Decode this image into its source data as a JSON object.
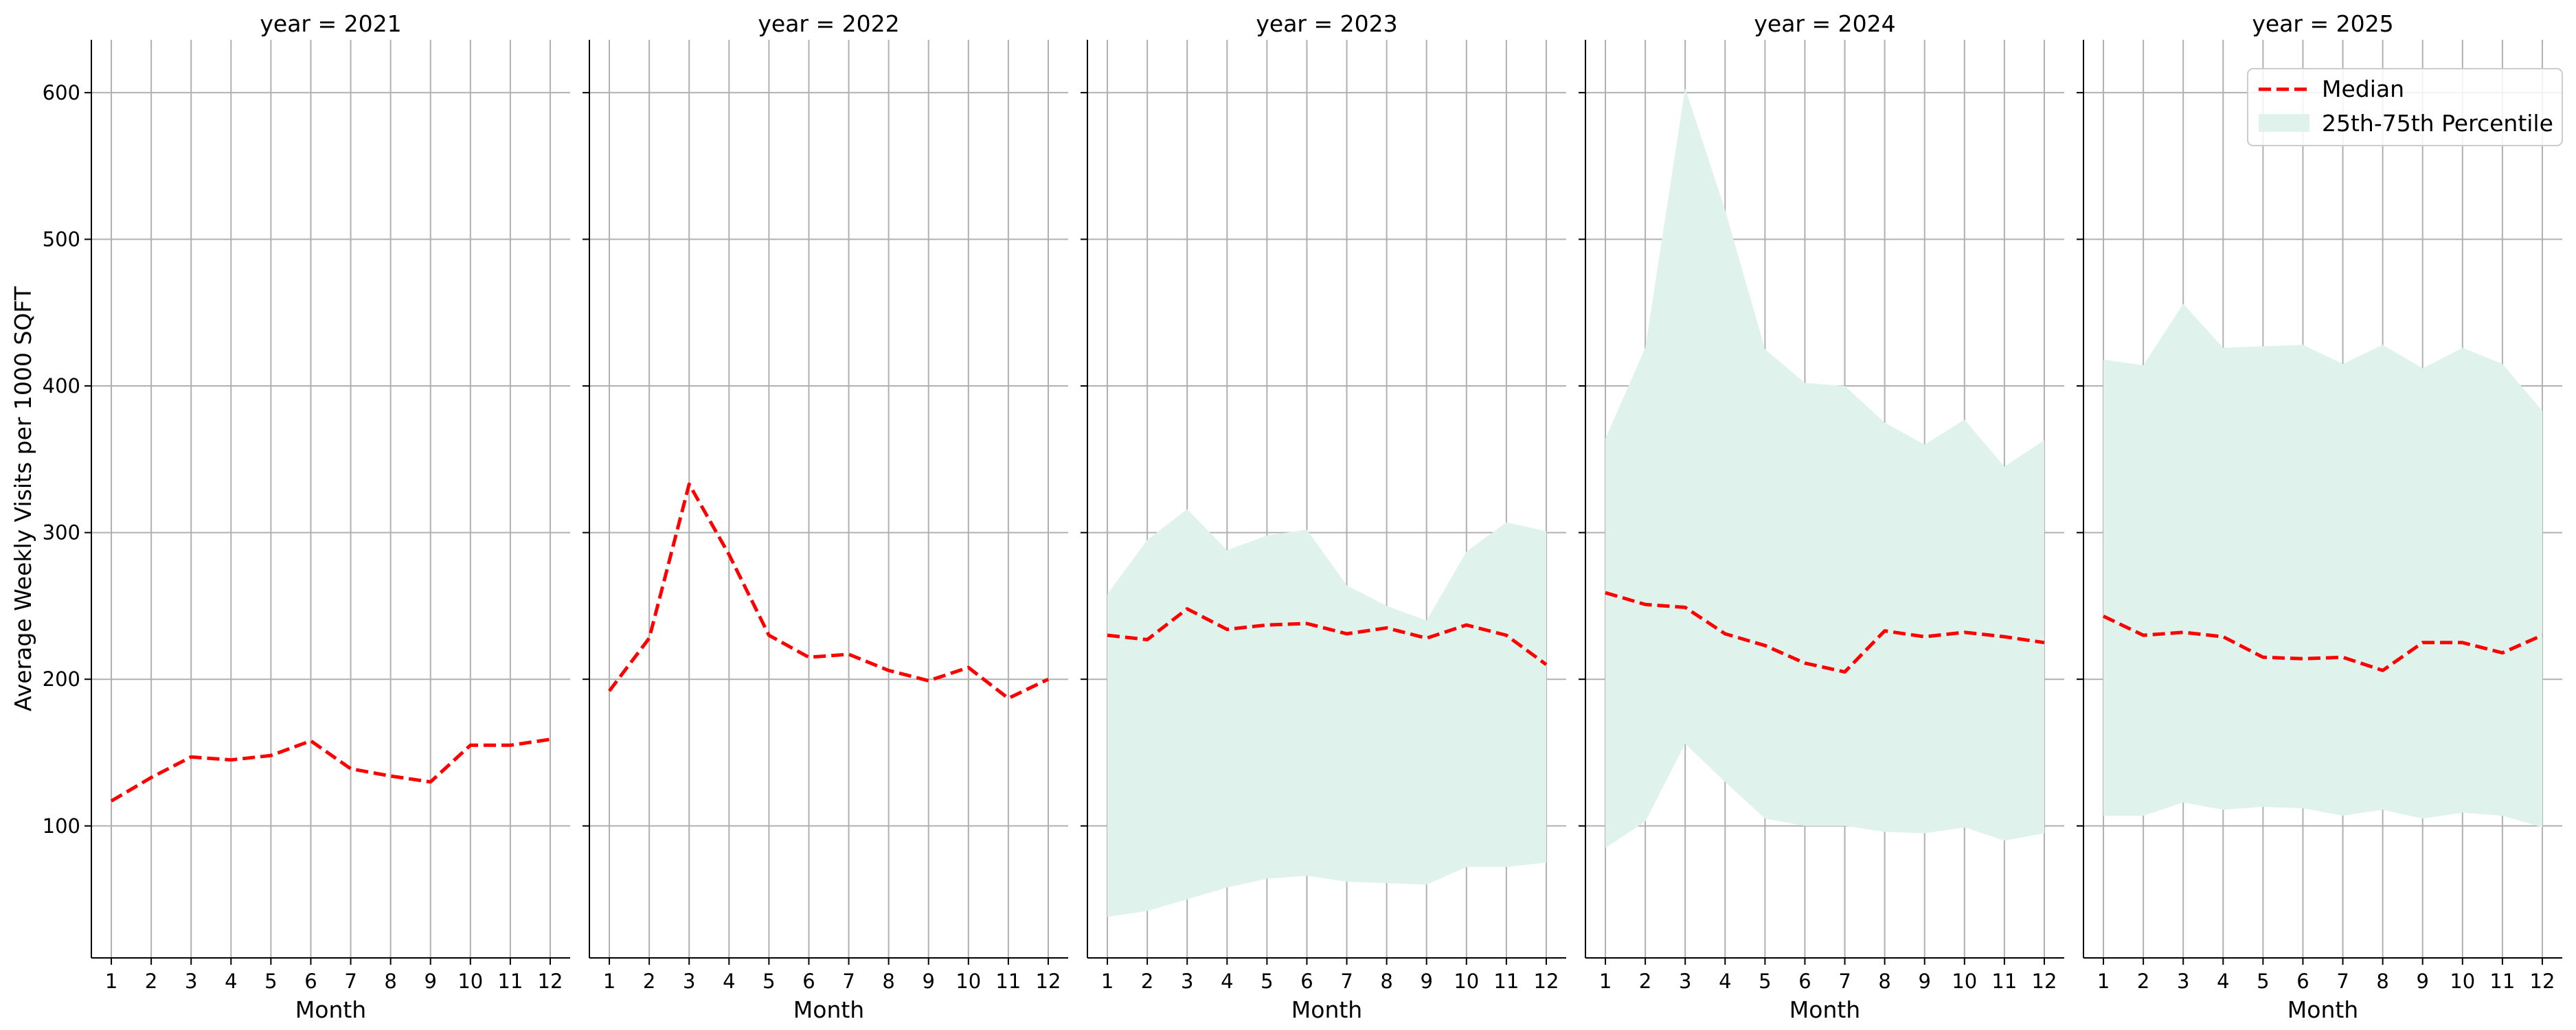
{
  "colors": {
    "median_line": "#ff0000",
    "band_fill": "#dff2ec",
    "grid": "#b0b0b0",
    "axis": "#000000"
  },
  "chart_data": {
    "type": "line",
    "ylabel": "Average Weekly Visits per 1000 SQFT",
    "xlabel": "Month",
    "x": [
      1,
      2,
      3,
      4,
      5,
      6,
      7,
      8,
      9,
      10,
      11,
      12
    ],
    "y_ticks": [
      100,
      200,
      300,
      400,
      500,
      600
    ],
    "ylim": [
      10,
      636
    ],
    "xlim": [
      0.5,
      12.5
    ],
    "grid": true,
    "sharey": true,
    "legend": {
      "placement": "top-right",
      "entries": [
        "Median",
        "25th-75th Percentile"
      ]
    },
    "facets": [
      {
        "title": "year = 2021",
        "median": [
          117,
          133,
          147,
          145,
          148,
          158,
          139,
          134,
          130,
          155,
          155,
          159
        ],
        "p25": null,
        "p75": null
      },
      {
        "title": "year = 2022",
        "median": [
          192,
          228,
          333,
          285,
          230,
          215,
          217,
          206,
          199,
          208,
          187,
          200
        ],
        "p25": null,
        "p75": null
      },
      {
        "title": "year = 2023",
        "median": [
          230,
          227,
          248,
          234,
          237,
          238,
          231,
          235,
          228,
          237,
          230,
          210
        ],
        "p25": [
          38,
          42,
          50,
          58,
          64,
          66,
          62,
          61,
          60,
          72,
          72,
          75
        ],
        "p75": [
          258,
          295,
          316,
          288,
          298,
          302,
          264,
          250,
          240,
          287,
          307,
          301
        ]
      },
      {
        "title": "year = 2024",
        "median": [
          259,
          251,
          249,
          231,
          223,
          211,
          205,
          233,
          229,
          232,
          229,
          225
        ],
        "p25": [
          85,
          103,
          156,
          130,
          105,
          100,
          100,
          96,
          95,
          99,
          90,
          95
        ],
        "p75": [
          364,
          426,
          603,
          520,
          425,
          402,
          400,
          375,
          360,
          377,
          345,
          363
        ]
      },
      {
        "title": "year = 2025",
        "median": [
          243,
          230,
          232,
          229,
          215,
          214,
          215,
          206,
          225,
          225,
          218,
          230
        ],
        "p25": [
          107,
          107,
          116,
          111,
          113,
          112,
          107,
          111,
          105,
          109,
          107,
          99
        ],
        "p75": [
          418,
          414,
          456,
          426,
          427,
          428,
          415,
          428,
          412,
          426,
          415,
          383
        ]
      }
    ]
  }
}
